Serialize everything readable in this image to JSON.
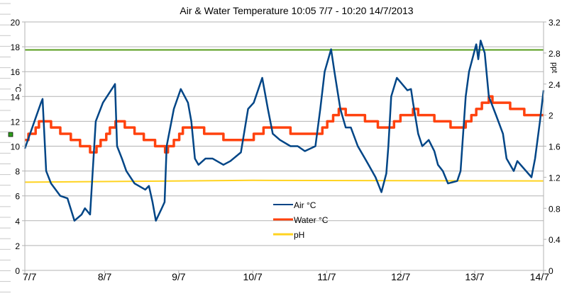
{
  "chart_data": {
    "type": "line",
    "title": "Air & Water Temperature 10:05 7/7 - 10:20 14/7/2013",
    "ylabel": "°C",
    "y2label": "ppt",
    "ylim": [
      0,
      20
    ],
    "y2lim": [
      0,
      3.2
    ],
    "yticks": [
      "0",
      "2",
      "4",
      "6",
      "8",
      "10",
      "12",
      "14",
      "16",
      "18",
      "20"
    ],
    "y2ticks": [
      "0",
      "0.4",
      "0.8",
      "1.2",
      "1.6",
      "2",
      "2.4",
      "2.8",
      "3.2"
    ],
    "xlim": [
      "2013-07-07 10:05",
      "2013-07-14 10:20"
    ],
    "xticks": [
      {
        "label": "7/7",
        "at": "2013-07-07 10:05"
      },
      {
        "label": "8/7",
        "at": "2013-07-08 12:00"
      },
      {
        "label": "9/7",
        "at": "2013-07-09 12:00"
      },
      {
        "label": "10/7",
        "at": "2013-07-10 12:00"
      },
      {
        "label": "11/7",
        "at": "2013-07-11 12:00"
      },
      {
        "label": "12/7",
        "at": "2013-07-12 12:00"
      },
      {
        "label": "13/7",
        "at": "2013-07-13 12:00"
      },
      {
        "label": "14/7",
        "at": "2013-07-14 10:20"
      }
    ],
    "grid": true,
    "legend_position": "center-right",
    "series": [
      {
        "name": "Air °C",
        "axis": "left",
        "color": "#004586",
        "step": false,
        "points": [
          [
            "2013-07-07 10:05",
            9.8
          ],
          [
            "2013-07-07 15:20",
            13.5
          ],
          [
            "2013-07-07 15:50",
            13.8
          ],
          [
            "2013-07-07 17:00",
            8
          ],
          [
            "2013-07-07 18:35",
            7
          ],
          [
            "2013-07-07 21:35",
            6
          ],
          [
            "2013-07-07 23:55",
            5.8
          ],
          [
            "2013-07-08 02:10",
            4
          ],
          [
            "2013-07-08 04:30",
            4.5
          ],
          [
            "2013-07-08 05:35",
            5
          ],
          [
            "2013-07-08 07:15",
            4.5
          ],
          [
            "2013-07-08 09:05",
            12
          ],
          [
            "2013-07-08 11:25",
            13.5
          ],
          [
            "2013-07-08 14:50",
            14.8
          ],
          [
            "2013-07-08 15:20",
            15
          ],
          [
            "2013-07-08 16:00",
            10
          ],
          [
            "2013-07-08 17:35",
            9
          ],
          [
            "2013-07-08 19:00",
            8
          ],
          [
            "2013-07-08 21:40",
            7
          ],
          [
            "2013-07-09 01:10",
            6.5
          ],
          [
            "2013-07-09 02:20",
            6.8
          ],
          [
            "2013-07-09 03:30",
            5.5
          ],
          [
            "2013-07-09 04:35",
            4
          ],
          [
            "2013-07-09 06:30",
            5
          ],
          [
            "2013-07-09 07:25",
            5.5
          ],
          [
            "2013-07-09 08:05",
            10
          ],
          [
            "2013-07-09 10:25",
            13
          ],
          [
            "2013-07-09 12:40",
            14.6
          ],
          [
            "2013-07-09 15:00",
            13.5
          ],
          [
            "2013-07-09 16:05",
            12
          ],
          [
            "2013-07-09 17:15",
            9
          ],
          [
            "2013-07-09 18:25",
            8.5
          ],
          [
            "2013-07-09 20:40",
            9
          ],
          [
            "2013-07-09 23:00",
            9
          ],
          [
            "2013-07-10 02:30",
            8.5
          ],
          [
            "2013-07-10 04:45",
            8.8
          ],
          [
            "2013-07-10 08:10",
            9.5
          ],
          [
            "2013-07-10 10:30",
            13
          ],
          [
            "2013-07-10 12:20",
            13.5
          ],
          [
            "2013-07-10 15:05",
            15.5
          ],
          [
            "2013-07-10 16:55",
            13
          ],
          [
            "2013-07-10 18:30",
            11
          ],
          [
            "2013-07-10 20:50",
            10.5
          ],
          [
            "2013-07-11 00:15",
            10
          ],
          [
            "2013-07-11 02:35",
            10
          ],
          [
            "2013-07-11 04:55",
            9.6
          ],
          [
            "2013-07-11 08:20",
            10
          ],
          [
            "2013-07-11 09:55",
            13
          ],
          [
            "2013-07-11 11:20",
            16
          ],
          [
            "2013-07-11 13:25",
            17.8
          ],
          [
            "2013-07-11 14:30",
            16
          ],
          [
            "2013-07-11 16:25",
            13
          ],
          [
            "2013-07-11 18:10",
            11.5
          ],
          [
            "2013-07-11 19:50",
            11.5
          ],
          [
            "2013-07-11 22:05",
            10
          ],
          [
            "2013-07-12 00:25",
            9
          ],
          [
            "2013-07-12 01:35",
            8.5
          ],
          [
            "2013-07-12 03:50",
            7.5
          ],
          [
            "2013-07-12 05:45",
            6.3
          ],
          [
            "2013-07-12 07:20",
            7.8
          ],
          [
            "2013-07-12 08:00",
            10
          ],
          [
            "2013-07-12 08:55",
            14
          ],
          [
            "2013-07-12 10:45",
            15.5
          ],
          [
            "2013-07-12 14:10",
            14.5
          ],
          [
            "2013-07-12 15:20",
            14.6
          ],
          [
            "2013-07-12 16:00",
            13.5
          ],
          [
            "2013-07-12 17:40",
            11
          ],
          [
            "2013-07-12 19:00",
            10
          ],
          [
            "2013-07-12 21:05",
            10.5
          ],
          [
            "2013-07-12 22:55",
            9.6
          ],
          [
            "2013-07-13 00:05",
            8.5
          ],
          [
            "2013-07-13 01:40",
            8
          ],
          [
            "2013-07-13 03:20",
            7
          ],
          [
            "2013-07-13 06:20",
            7.2
          ],
          [
            "2013-07-13 07:25",
            8
          ],
          [
            "2013-07-13 09:05",
            14
          ],
          [
            "2013-07-13 10:10",
            16
          ],
          [
            "2013-07-13 12:30",
            18.2
          ],
          [
            "2013-07-13 13:10",
            17
          ],
          [
            "2013-07-13 13:55",
            18.5
          ],
          [
            "2013-07-13 15:15",
            17.5
          ],
          [
            "2013-07-13 16:35",
            14
          ],
          [
            "2013-07-13 18:55",
            12.5
          ],
          [
            "2013-07-13 21:10",
            11
          ],
          [
            "2013-07-13 22:20",
            9
          ],
          [
            "2013-07-14 00:40",
            8
          ],
          [
            "2013-07-14 01:50",
            8.8
          ],
          [
            "2013-07-14 06:25",
            7.5
          ],
          [
            "2013-07-14 07:35",
            9
          ],
          [
            "2013-07-14 09:10",
            12
          ],
          [
            "2013-07-14 10:20",
            14.5
          ]
        ]
      },
      {
        "name": "Water °C",
        "axis": "left",
        "color": "#ff420e",
        "step": true,
        "points": [
          [
            "2013-07-07 10:05",
            10.5
          ],
          [
            "2013-07-07 11:15",
            11
          ],
          [
            "2013-07-07 13:35",
            11.5
          ],
          [
            "2013-07-07 14:40",
            12
          ],
          [
            "2013-07-07 18:35",
            11.5
          ],
          [
            "2013-07-07 21:35",
            11
          ],
          [
            "2013-07-08 01:00",
            10.5
          ],
          [
            "2013-07-08 04:00",
            10
          ],
          [
            "2013-07-08 07:15",
            9.5
          ],
          [
            "2013-07-08 09:20",
            10
          ],
          [
            "2013-07-08 10:40",
            10.5
          ],
          [
            "2013-07-08 12:30",
            11
          ],
          [
            "2013-07-08 13:40",
            11.5
          ],
          [
            "2013-07-08 15:30",
            12
          ],
          [
            "2013-07-08 18:30",
            11.5
          ],
          [
            "2013-07-08 21:40",
            11
          ],
          [
            "2013-07-09 00:40",
            10.5
          ],
          [
            "2013-07-09 04:20",
            10
          ],
          [
            "2013-07-09 07:35",
            9.5
          ],
          [
            "2013-07-09 08:30",
            10
          ],
          [
            "2013-07-09 10:25",
            10.5
          ],
          [
            "2013-07-09 12:10",
            11
          ],
          [
            "2013-07-09 13:20",
            11.5
          ],
          [
            "2013-07-09 20:15",
            11
          ],
          [
            "2013-07-10 02:30",
            10.5
          ],
          [
            "2013-07-10 12:20",
            11
          ],
          [
            "2013-07-10 15:30",
            11.5
          ],
          [
            "2013-07-11 00:15",
            11
          ],
          [
            "2013-07-11 10:35",
            11.5
          ],
          [
            "2013-07-11 12:10",
            12
          ],
          [
            "2013-07-11 14:05",
            12.5
          ],
          [
            "2013-07-11 15:55",
            13
          ],
          [
            "2013-07-11 18:10",
            12.5
          ],
          [
            "2013-07-12 00:25",
            12
          ],
          [
            "2013-07-12 04:35",
            11.5
          ],
          [
            "2013-07-12 09:50",
            12
          ],
          [
            "2013-07-12 11:55",
            12.5
          ],
          [
            "2013-07-12 16:00",
            13
          ],
          [
            "2013-07-12 17:40",
            12.5
          ],
          [
            "2013-07-12 22:55",
            12
          ],
          [
            "2013-07-13 04:10",
            11.5
          ],
          [
            "2013-07-13 09:05",
            12
          ],
          [
            "2013-07-13 10:55",
            12.5
          ],
          [
            "2013-07-13 12:30",
            13
          ],
          [
            "2013-07-13 14:20",
            13.5
          ],
          [
            "2013-07-13 16:35",
            14
          ],
          [
            "2013-07-13 17:45",
            13.5
          ],
          [
            "2013-07-13 23:30",
            13
          ],
          [
            "2013-07-14 04:05",
            12.5
          ],
          [
            "2013-07-14 10:20",
            12.5
          ]
        ]
      },
      {
        "name": "pH",
        "axis": "left",
        "color": "#ffd320",
        "step": false,
        "points": [
          [
            "2013-07-07 10:05",
            7.1
          ],
          [
            "2013-07-10 12:00",
            7.25
          ],
          [
            "2013-07-14 10:20",
            7.2
          ]
        ]
      },
      {
        "axis": "right",
        "color": "#579d1c",
        "step": false,
        "points": [
          [
            "2013-07-07 10:05",
            2.84
          ],
          [
            "2013-07-14 10:20",
            2.84
          ]
        ]
      }
    ]
  }
}
